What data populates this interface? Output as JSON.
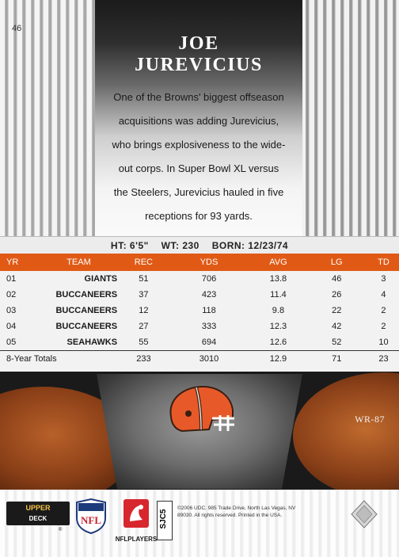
{
  "card": {
    "number": "46",
    "first_name": "JOE",
    "last_name": "JUREVICIUS",
    "bio_lines": [
      "One of the Browns' biggest offseason",
      "acquisitions was adding Jurevicius,",
      "who brings explosiveness to the wide-",
      "out corps. In Super Bowl XL versus",
      "the Steelers, Jurevicius hauled in five",
      "receptions for 93 yards."
    ],
    "vitals": {
      "height": "HT: 6'5\"",
      "weight": "WT: 230",
      "born": "BORN: 12/23/74"
    },
    "position_code": "WR-87"
  },
  "stats": {
    "headers": [
      "YR",
      "TEAM",
      "REC",
      "YDS",
      "AVG",
      "LG",
      "TD"
    ],
    "rows": [
      [
        "01",
        "GIANTS",
        "51",
        "706",
        "13.8",
        "46",
        "3"
      ],
      [
        "02",
        "BUCCANEERS",
        "37",
        "423",
        "11.4",
        "26",
        "4"
      ],
      [
        "03",
        "BUCCANEERS",
        "12",
        "118",
        "9.8",
        "22",
        "2"
      ],
      [
        "04",
        "BUCCANEERS",
        "27",
        "333",
        "12.3",
        "42",
        "2"
      ],
      [
        "05",
        "SEAHAWKS",
        "55",
        "694",
        "12.6",
        "52",
        "10"
      ]
    ],
    "totals": [
      "8-Year Totals",
      "233",
      "3010",
      "12.9",
      "71",
      "23"
    ]
  },
  "footer": {
    "brand_top": "UPPER",
    "brand_bottom": "DECK",
    "nfl_label": "NFL",
    "nflplayers_label": "NFLPLAYERS",
    "set_code": "SJC5",
    "legal_lines": [
      "©2006 UDC. 985 Trade Drive, North Las Vegas, NV",
      "89030. All rights reserved. Printed in the USA."
    ],
    "registered": "®"
  },
  "colors": {
    "accent": "#e05a16",
    "browns_orange": "#e8592a",
    "browns_brown": "#4a2a16"
  },
  "icons": [
    "browns-helmet-icon",
    "nfl-shield-icon",
    "nflplayers-icon",
    "hologram-icon"
  ]
}
